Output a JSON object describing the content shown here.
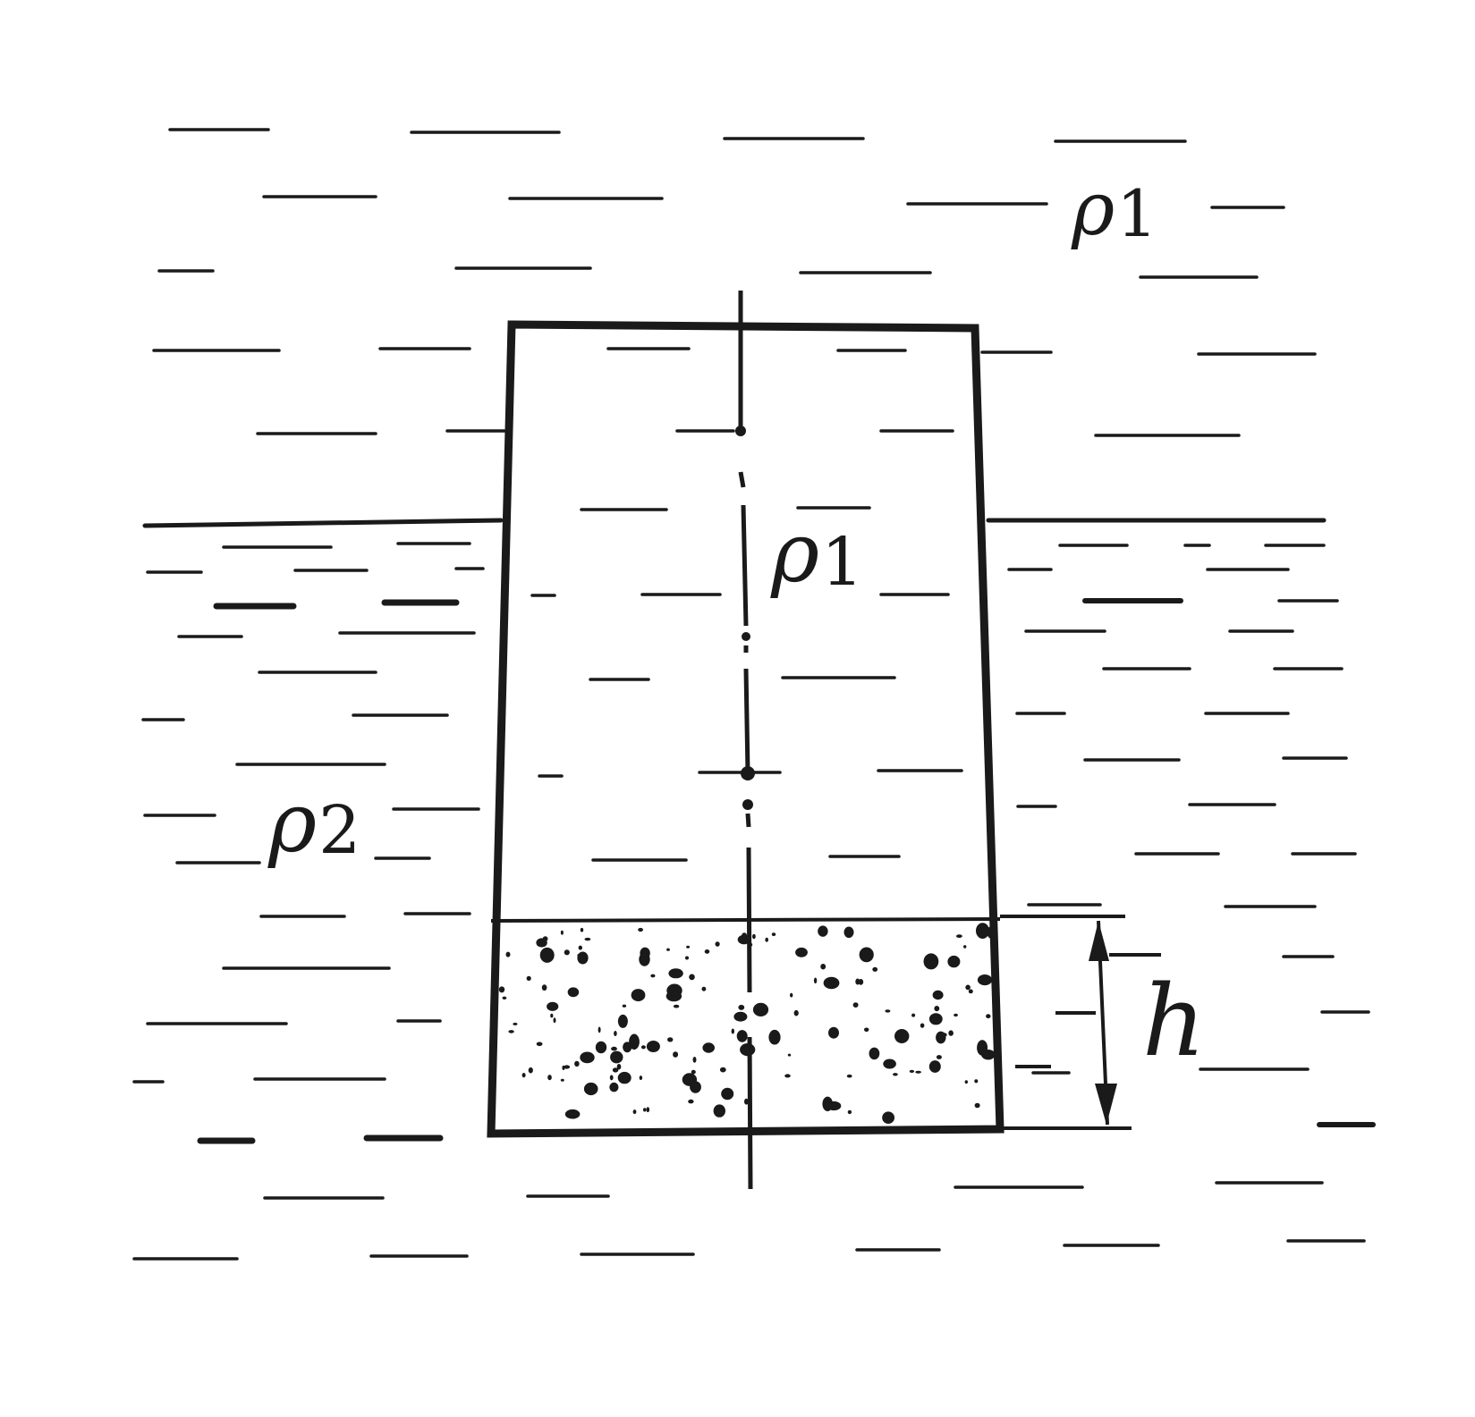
{
  "labels": {
    "rho1_outer": {
      "symbol": "ρ",
      "sub": "1"
    },
    "rho1_inner": {
      "symbol": "ρ",
      "sub": "1"
    },
    "rho2": {
      "symbol": "ρ",
      "sub": "2"
    },
    "h": "h"
  },
  "colors": {
    "ink": "#1a1a1a",
    "background": "#ffffff"
  }
}
